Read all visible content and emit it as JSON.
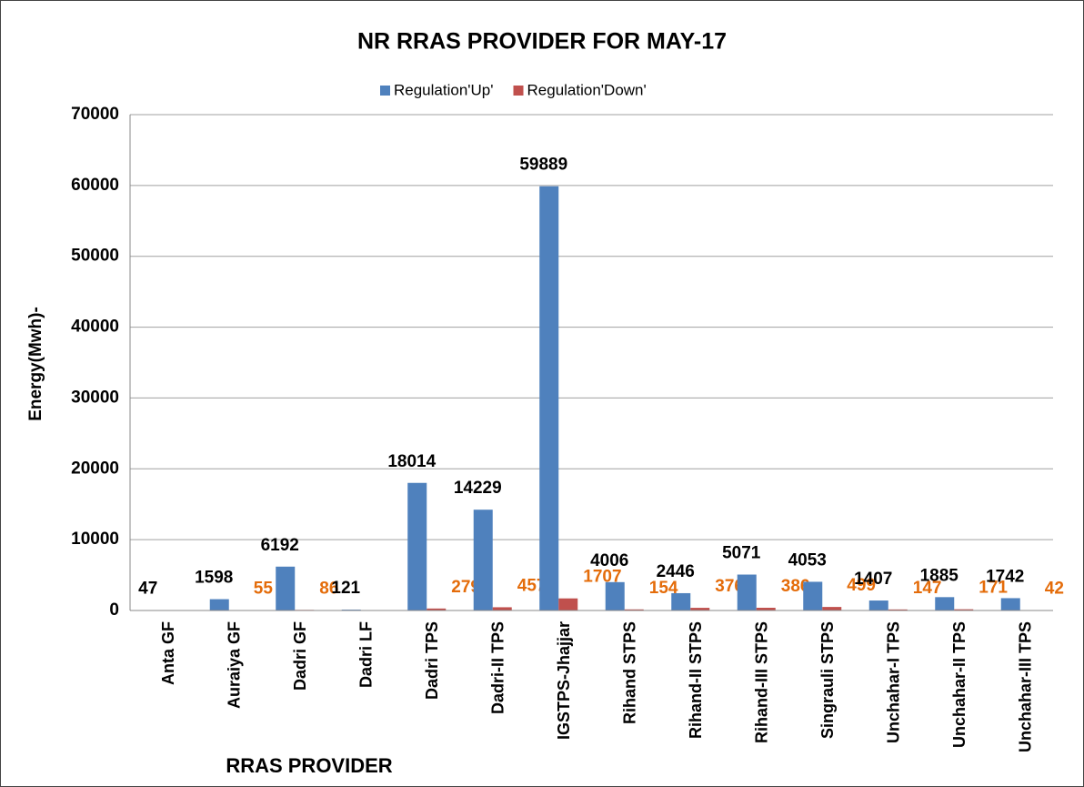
{
  "chart_data": {
    "type": "bar",
    "title": "NR RRAS PROVIDER FOR MAY-17",
    "x_label": "RRAS PROVIDER",
    "y_label": "Energy(Mwh)-",
    "categories": [
      "Anta GF",
      "Auraiya GF",
      "Dadri GF",
      "Dadri LF",
      "Dadri TPS",
      "Dadri-II TPS",
      "IGSTPS-Jhajjar",
      "Rihand STPS",
      "Rihand-II STPS",
      "Rihand-III STPS",
      "Singrauli STPS",
      "Unchahar-I TPS",
      "Unchahar-II TPS",
      "Unchahar-III TPS"
    ],
    "series": [
      {
        "name": "Regulation'Up'",
        "color": "#4f81bd",
        "label_color": "#000000",
        "values": [
          47,
          1598,
          6192,
          121,
          18014,
          14229,
          59889,
          4006,
          2446,
          5071,
          4053,
          1407,
          1885,
          1742
        ]
      },
      {
        "name": "Regulation'Down'",
        "color": "#c0504d",
        "label_color": "#e46c0a",
        "values": [
          null,
          55,
          86,
          null,
          279,
          457,
          1707,
          154,
          376,
          386,
          499,
          147,
          171,
          42
        ]
      }
    ],
    "ylim": [
      0,
      70000
    ],
    "yticks": [
      0,
      10000,
      20000,
      30000,
      40000,
      50000,
      60000,
      70000
    ],
    "grid": true,
    "legend": "top"
  }
}
